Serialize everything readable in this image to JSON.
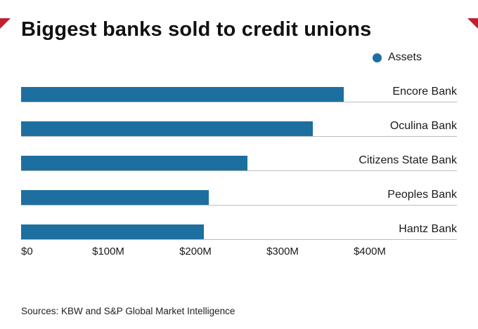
{
  "page": {
    "title": "Biggest banks sold to credit unions"
  },
  "legend": {
    "label": "Assets"
  },
  "chart_data": {
    "type": "bar",
    "orientation": "horizontal",
    "title": "Biggest banks sold to credit unions",
    "series_name": "Assets",
    "categories": [
      "Encore Bank",
      "Oculina Bank",
      "Citizens State Bank",
      "Peoples Bank",
      "Hantz Bank"
    ],
    "values": [
      370,
      335,
      260,
      215,
      210
    ],
    "unit": "USD millions",
    "xlabel": "",
    "ylabel": "",
    "xlim": [
      0,
      500
    ],
    "x_ticks": [
      {
        "value": 0,
        "label": "$0"
      },
      {
        "value": 100,
        "label": "$100M"
      },
      {
        "value": 200,
        "label": "$200M"
      },
      {
        "value": 300,
        "label": "$300M"
      },
      {
        "value": 400,
        "label": "$400M"
      }
    ],
    "grid": "horizontal-baselines-per-bar",
    "legend_position": "top-right"
  },
  "source": {
    "text": "Sources: KBW and S&P Global Market Intelligence"
  },
  "colors": {
    "bar": "#1d6f9f",
    "accent_red": "#bf2032",
    "gridline": "#bdbdbd",
    "title_text": "#111111",
    "body_text": "#1a1a1a"
  }
}
